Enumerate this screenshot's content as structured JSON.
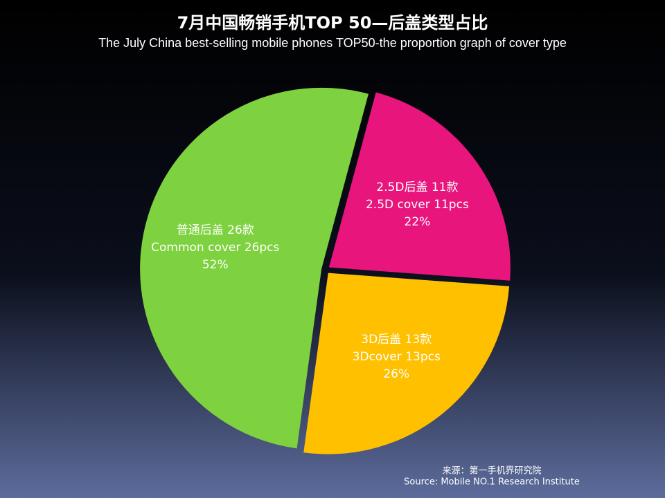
{
  "chart_data": {
    "type": "pie",
    "title": "7月中国畅销手机TOP 50—后盖类型占比",
    "subtitle": "The July China best-selling mobile phones TOP50-the proportion graph of  cover type",
    "categories": [
      "2.5D后盖 11款",
      "3D后盖 13款",
      "普通后盖 26款"
    ],
    "categories_en": [
      "2.5D cover 11pcs",
      "3Dcover 13pcs",
      "Common  cover 26pcs"
    ],
    "values": [
      22,
      26,
      52
    ],
    "value_labels": [
      "22%",
      "26%",
      "52%"
    ],
    "colors": [
      "#e8157d",
      "#ffc000",
      "#7ed13f"
    ],
    "source": [
      "来源：第一手机界研究院",
      "Source: Mobile NO.1 Research Institute"
    ]
  }
}
